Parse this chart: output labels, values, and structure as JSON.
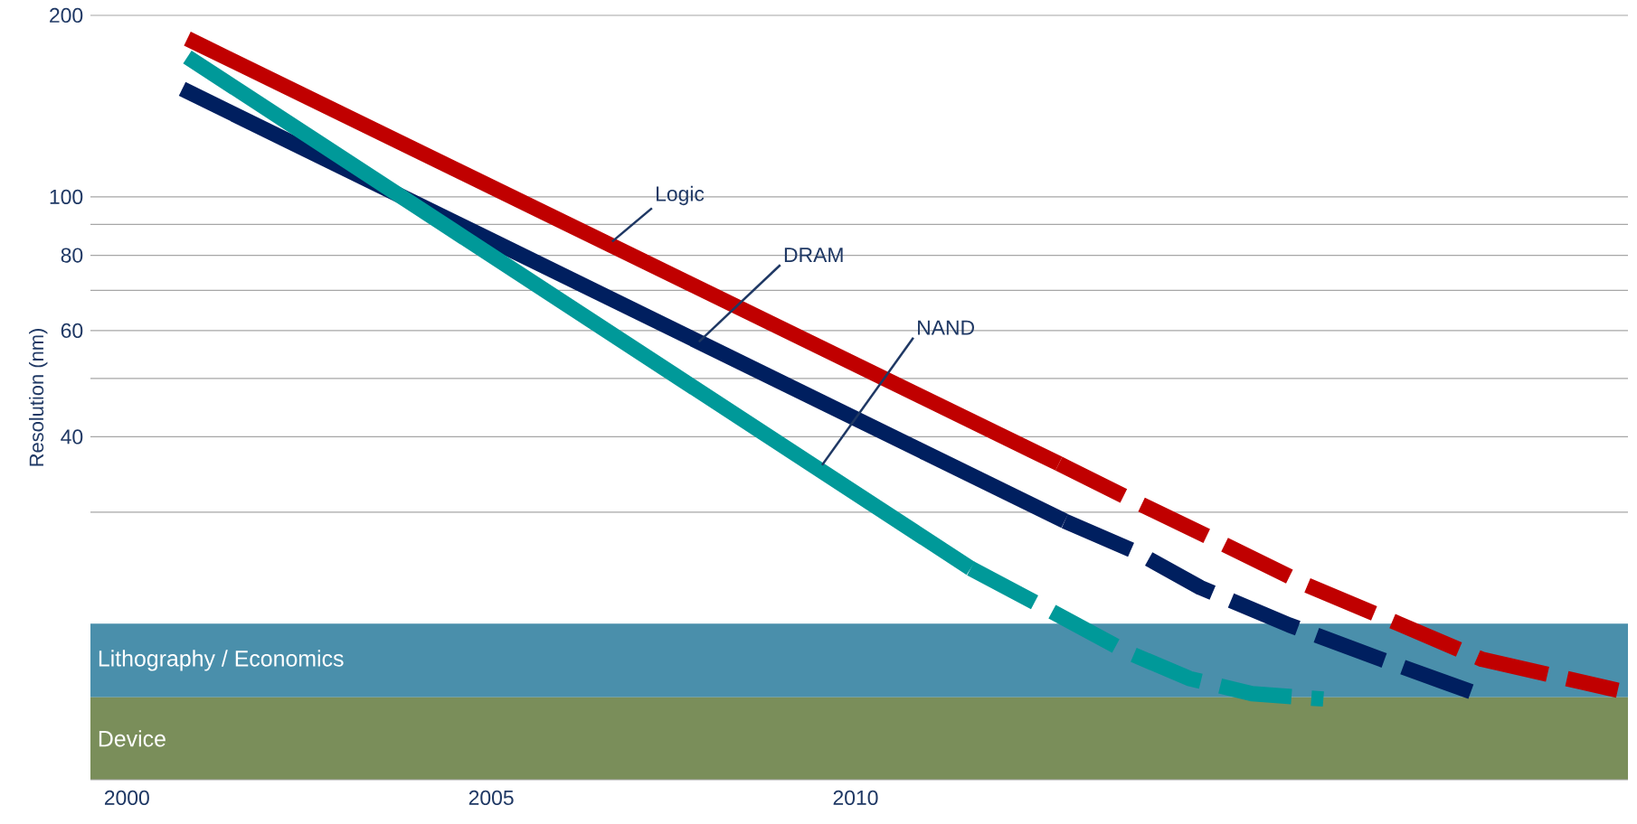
{
  "chart_data": {
    "type": "line",
    "ylabel": "Resolution (nm)",
    "log": true,
    "grid": "y",
    "marker": "none",
    "xlim": [
      1999.5,
      2020.6
    ],
    "xticks": [
      2000,
      2005,
      2010
    ],
    "ylim": [
      10.8,
      200
    ],
    "yticks": [
      {
        "value": 30,
        "label": null
      },
      40,
      {
        "value": 50,
        "label": null
      },
      60,
      {
        "value": 70,
        "label": null
      },
      80,
      {
        "value": 90,
        "label": null
      },
      100,
      200
    ],
    "series": [
      {
        "color": "#c00000",
        "line_style": "solid",
        "x": [
          2000.83,
          2012.79
        ],
        "values": [
          183,
          36.1
        ]
      },
      {
        "color": "#c00000",
        "line_style": "dashed",
        "x": [
          2012.79,
          2013.8,
          2015.01,
          2016.16,
          2017.45,
          2018.6,
          2020.46
        ],
        "values": [
          36.1,
          31.4,
          26.7,
          22.8,
          19.6,
          17.1,
          15.2
        ]
      },
      {
        "color": "#001f5f",
        "line_style": "solid",
        "x": [
          2000.76,
          2012.87
        ],
        "values": [
          151,
          29.0
        ]
      },
      {
        "color": "#001f5f",
        "line_style": "dashed",
        "x": [
          2012.87,
          2013.87,
          2014.73,
          2015.95,
          2017.16,
          2018.52
        ],
        "values": [
          29.0,
          25.7,
          22.5,
          19.5,
          17.2,
          15.0
        ]
      },
      {
        "color": "#009999",
        "line_style": "solid",
        "x": [
          2000.83,
          2011.58
        ],
        "values": [
          170.6,
          24.2
        ]
      },
      {
        "color": "#009999",
        "line_style": "dashed",
        "x": [
          2011.58,
          2012.51,
          2013.72,
          2014.58,
          2015.44,
          2016.42
        ],
        "values": [
          24.2,
          21.1,
          17.6,
          15.9,
          15.0,
          14.7
        ]
      }
    ],
    "bands": [
      {
        "axis": "y",
        "from": 14.8,
        "to": 19.6,
        "label": "Lithography / Economics",
        "color": "#4a8fab"
      },
      {
        "axis": "y",
        "from": 10.8,
        "to": 14.8,
        "label": "Device",
        "color": "#7a8e5a"
      }
    ],
    "annotations": [
      {
        "text": "Logic",
        "x": 2006.66,
        "y": 84.3
      },
      {
        "text": "DRAM",
        "x": 2007.85,
        "y": 57.5
      },
      {
        "text": "NAND",
        "x": 2009.54,
        "y": 35.9
      }
    ]
  }
}
